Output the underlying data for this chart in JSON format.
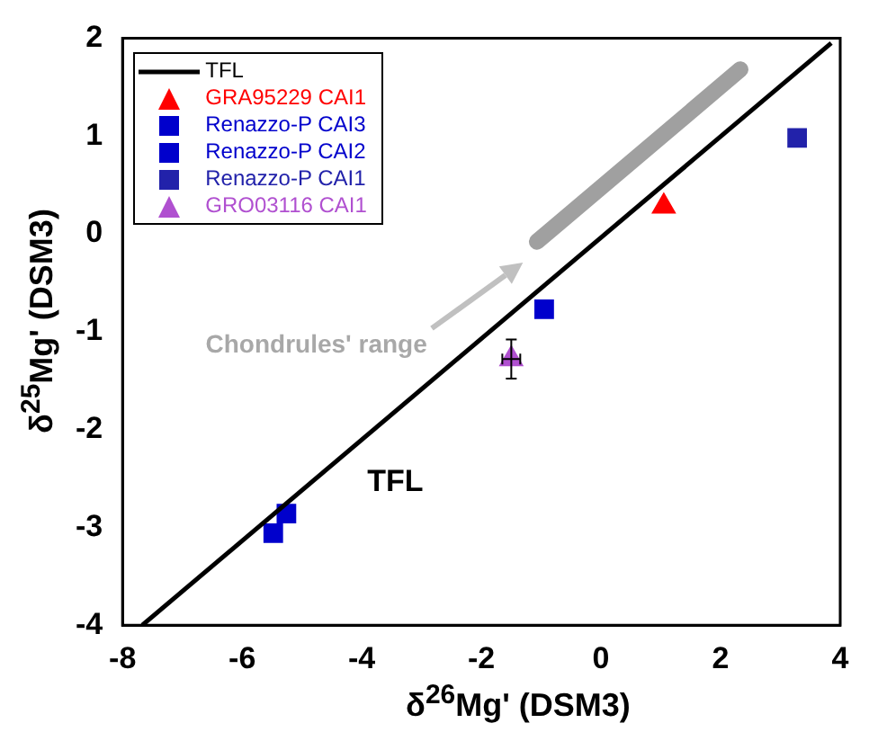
{
  "chart_data": {
    "type": "scatter",
    "xlabel": "δ$^{26}$Mg' (DSM3)",
    "ylabel": "δ$^{25}$Mg' (DSM3)",
    "xlim": [
      -8,
      4
    ],
    "xticks": [
      -8,
      -6,
      -4,
      -2,
      0,
      2,
      4
    ],
    "ylim": [
      -4,
      2
    ],
    "yticks": [
      -4,
      -3,
      -2,
      -1,
      0,
      1,
      2
    ],
    "grid": false,
    "legend": "top left",
    "series": [
      {
        "name": "TFL",
        "type": "line",
        "color": "#000000",
        "x": [
          -7.67,
          3.85
        ],
        "values": [
          -4,
          1.95
        ]
      },
      {
        "name": "GRA95229 CAI1",
        "color": "#ff0000",
        "marker": "triangle",
        "x": [
          1.05
        ],
        "values": [
          0.28
        ]
      },
      {
        "name": "Renazzo-P CAI3",
        "color": "#0000cc",
        "marker": "square",
        "x": [
          -5.26,
          -5.48
        ],
        "values": [
          -2.86,
          -3.06
        ]
      },
      {
        "name": "Renazzo-P CAI2",
        "color": "#0000cc",
        "marker": "square",
        "x": [
          -0.95
        ],
        "values": [
          -0.77
        ]
      },
      {
        "name": "Renazzo-P CAI1",
        "color": "#2222aa",
        "marker": "square",
        "x": [
          3.28
        ],
        "values": [
          0.98
        ]
      },
      {
        "name": "GRO03116 CAI1",
        "color": "#b050d0",
        "marker": "triangle",
        "x": [
          -1.5
        ],
        "values": [
          -1.28
        ],
        "errors": [
          0.2
        ],
        "xerrors": [
          0.15
        ]
      },
      {
        "type": "line",
        "color": "#a0a0a0",
        "x": [
          -1.07,
          2.33
        ],
        "values": [
          -0.08,
          1.68
        ]
      }
    ],
    "annotations": [
      "Chondrules' range",
      "TFL"
    ]
  }
}
